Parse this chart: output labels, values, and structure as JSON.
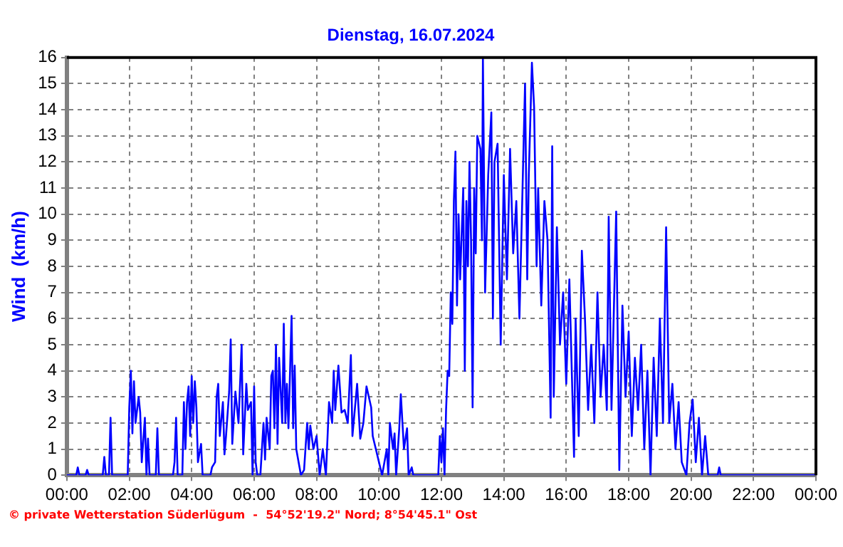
{
  "chart_data": {
    "type": "line",
    "title": "Dienstag, 16.07.2024",
    "ylabel": "Wind  (km/h)",
    "annotations": [
      "© private Wetterstation Süderlügum  -  54°52'19.2\" Nord; 8°54'45.1\" Ost"
    ],
    "x": [
      0,
      0.3,
      0.35,
      0.4,
      0.6,
      0.65,
      0.7,
      1.15,
      1.2,
      1.25,
      1.35,
      1.4,
      1.45,
      1.95,
      2.0,
      2.05,
      2.1,
      2.15,
      2.2,
      2.3,
      2.35,
      2.4,
      2.5,
      2.55,
      2.6,
      2.65,
      2.85,
      2.9,
      2.95,
      3.4,
      3.45,
      3.5,
      3.55,
      3.7,
      3.75,
      3.8,
      3.85,
      3.9,
      3.95,
      4.0,
      4.05,
      4.1,
      4.15,
      4.2,
      4.3,
      4.35,
      4.6,
      4.65,
      4.75,
      4.8,
      4.85,
      4.9,
      5.0,
      5.05,
      5.1,
      5.2,
      5.25,
      5.3,
      5.4,
      5.5,
      5.6,
      5.65,
      5.75,
      5.8,
      5.9,
      5.95,
      6.0,
      6.05,
      6.1,
      6.2,
      6.3,
      6.35,
      6.4,
      6.5,
      6.55,
      6.6,
      6.65,
      6.7,
      6.75,
      6.8,
      6.9,
      6.95,
      7.0,
      7.05,
      7.1,
      7.2,
      7.25,
      7.3,
      7.35,
      7.5,
      7.6,
      7.7,
      7.75,
      7.8,
      7.9,
      8.0,
      8.1,
      8.2,
      8.3,
      8.4,
      8.5,
      8.55,
      8.6,
      8.7,
      8.8,
      8.9,
      9.0,
      9.1,
      9.15,
      9.3,
      9.4,
      9.5,
      9.6,
      9.75,
      9.8,
      9.9,
      10.0,
      10.1,
      10.25,
      10.3,
      10.35,
      10.45,
      10.5,
      10.55,
      10.65,
      10.7,
      10.8,
      10.9,
      10.95,
      11.05,
      11.1,
      11.9,
      11.95,
      12.0,
      12.05,
      12.1,
      12.15,
      12.2,
      12.25,
      12.3,
      12.35,
      12.4,
      12.45,
      12.5,
      12.55,
      12.6,
      12.7,
      12.75,
      12.8,
      12.85,
      12.9,
      12.95,
      13.0,
      13.05,
      13.1,
      13.15,
      13.25,
      13.3,
      13.33,
      13.4,
      13.5,
      13.6,
      13.65,
      13.7,
      13.8,
      13.9,
      14.0,
      14.1,
      14.2,
      14.3,
      14.4,
      14.5,
      14.6,
      14.68,
      14.75,
      14.8,
      14.9,
      14.97,
      15.05,
      15.1,
      15.2,
      15.3,
      15.4,
      15.5,
      15.55,
      15.6,
      15.7,
      15.8,
      15.9,
      16.0,
      16.1,
      16.25,
      16.3,
      16.4,
      16.5,
      16.6,
      16.7,
      16.8,
      16.9,
      17.0,
      17.1,
      17.2,
      17.3,
      17.36,
      17.45,
      17.6,
      17.7,
      17.8,
      17.9,
      18.0,
      18.1,
      18.2,
      18.3,
      18.4,
      18.5,
      18.6,
      18.7,
      18.8,
      18.9,
      19.0,
      19.1,
      19.2,
      19.3,
      19.4,
      19.5,
      19.6,
      19.7,
      19.85,
      19.95,
      20.05,
      20.15,
      20.25,
      20.35,
      20.45,
      20.55,
      20.85,
      20.9,
      20.95,
      24
    ],
    "series": [
      {
        "color": "#0000ff",
        "values": [
          0,
          0,
          0.3,
          0,
          0,
          0.2,
          0,
          0,
          0.7,
          0,
          0,
          2.2,
          0,
          0,
          2.6,
          4.0,
          1.6,
          3.6,
          2.0,
          3.0,
          2.4,
          0.5,
          2.2,
          0,
          1.4,
          0,
          0,
          1.8,
          0,
          0,
          0.5,
          2.2,
          0,
          0,
          2.8,
          1.0,
          2.8,
          3.4,
          1.5,
          3.8,
          2.0,
          3.6,
          2.6,
          0.5,
          1.2,
          0,
          0,
          0.3,
          0.5,
          3.0,
          3.5,
          1.5,
          2.8,
          0.8,
          1.5,
          3.2,
          5.2,
          1.2,
          3.2,
          2.0,
          5.0,
          0.8,
          3.5,
          2.5,
          2.8,
          0,
          3.4,
          0.5,
          0,
          0,
          2.0,
          0.6,
          2.2,
          1.0,
          3.8,
          4.0,
          1.8,
          5.0,
          1.2,
          4.5,
          2.0,
          5.8,
          2.0,
          3.5,
          1.8,
          6.1,
          1.8,
          4.2,
          1.0,
          0,
          0.2,
          2.0,
          1.0,
          1.9,
          1.0,
          1.5,
          0,
          1.0,
          0,
          2.8,
          2.0,
          4.0,
          2.5,
          4.2,
          2.4,
          2.5,
          2.0,
          4.6,
          1.5,
          3.5,
          1.4,
          2.0,
          3.4,
          2.6,
          1.5,
          1.0,
          0.5,
          0,
          1.0,
          0,
          2.0,
          1.0,
          1.6,
          0,
          1.8,
          3.1,
          1.0,
          1.8,
          0,
          0.3,
          0,
          0,
          1.5,
          0.5,
          1.8,
          0,
          2.5,
          4.0,
          3.8,
          7.0,
          5.8,
          10.5,
          12.4,
          6.5,
          10.0,
          7.5,
          11.0,
          4.0,
          10.5,
          8.0,
          12.0,
          9.0,
          2.6,
          11.0,
          8.5,
          13.0,
          12.5,
          9.0,
          16.0,
          7.0,
          11.5,
          13.9,
          6.0,
          12.0,
          12.7,
          5.0,
          11.5,
          7.5,
          12.5,
          8.5,
          10.5,
          6.0,
          11.0,
          15.0,
          7.5,
          11.5,
          15.8,
          14.1,
          8.0,
          11.0,
          6.5,
          10.5,
          9.0,
          2.2,
          12.6,
          3.0,
          9.5,
          5.0,
          7.0,
          3.5,
          7.5,
          0.7,
          6.0,
          1.5,
          8.6,
          6.0,
          2.5,
          5.0,
          2.0,
          7.0,
          3.0,
          5.0,
          2.5,
          9.9,
          2.5,
          10.1,
          0.2,
          6.5,
          3.0,
          5.5,
          1.5,
          4.5,
          2.5,
          5.0,
          1.0,
          4.0,
          0,
          4.5,
          1.5,
          6.0,
          2.0,
          9.5,
          2.0,
          3.5,
          1.0,
          2.8,
          0.5,
          0,
          2.0,
          2.9,
          0.5,
          2.2,
          0,
          1.5,
          0,
          0,
          0.3,
          0,
          0
        ]
      }
    ],
    "xlim": [
      0,
      24
    ],
    "xticks": [
      {
        "value": 0,
        "label": "00:00"
      },
      {
        "value": 2,
        "label": "02:00"
      },
      {
        "value": 4,
        "label": "04:00"
      },
      {
        "value": 6,
        "label": "06:00"
      },
      {
        "value": 8,
        "label": "08:00"
      },
      {
        "value": 10,
        "label": "10:00"
      },
      {
        "value": 12,
        "label": "12:00"
      },
      {
        "value": 14,
        "label": "14:00"
      },
      {
        "value": 16,
        "label": "16:00"
      },
      {
        "value": 18,
        "label": "18:00"
      },
      {
        "value": 20,
        "label": "20:00"
      },
      {
        "value": 22,
        "label": "22:00"
      },
      {
        "value": 24,
        "label": "00:00"
      }
    ],
    "ylim": [
      0,
      16
    ],
    "yticks": [
      0,
      1,
      2,
      3,
      4,
      5,
      6,
      7,
      8,
      9,
      10,
      11,
      12,
      13,
      14,
      15,
      16
    ],
    "grid": true,
    "marker": "none",
    "line_style": "solid"
  }
}
